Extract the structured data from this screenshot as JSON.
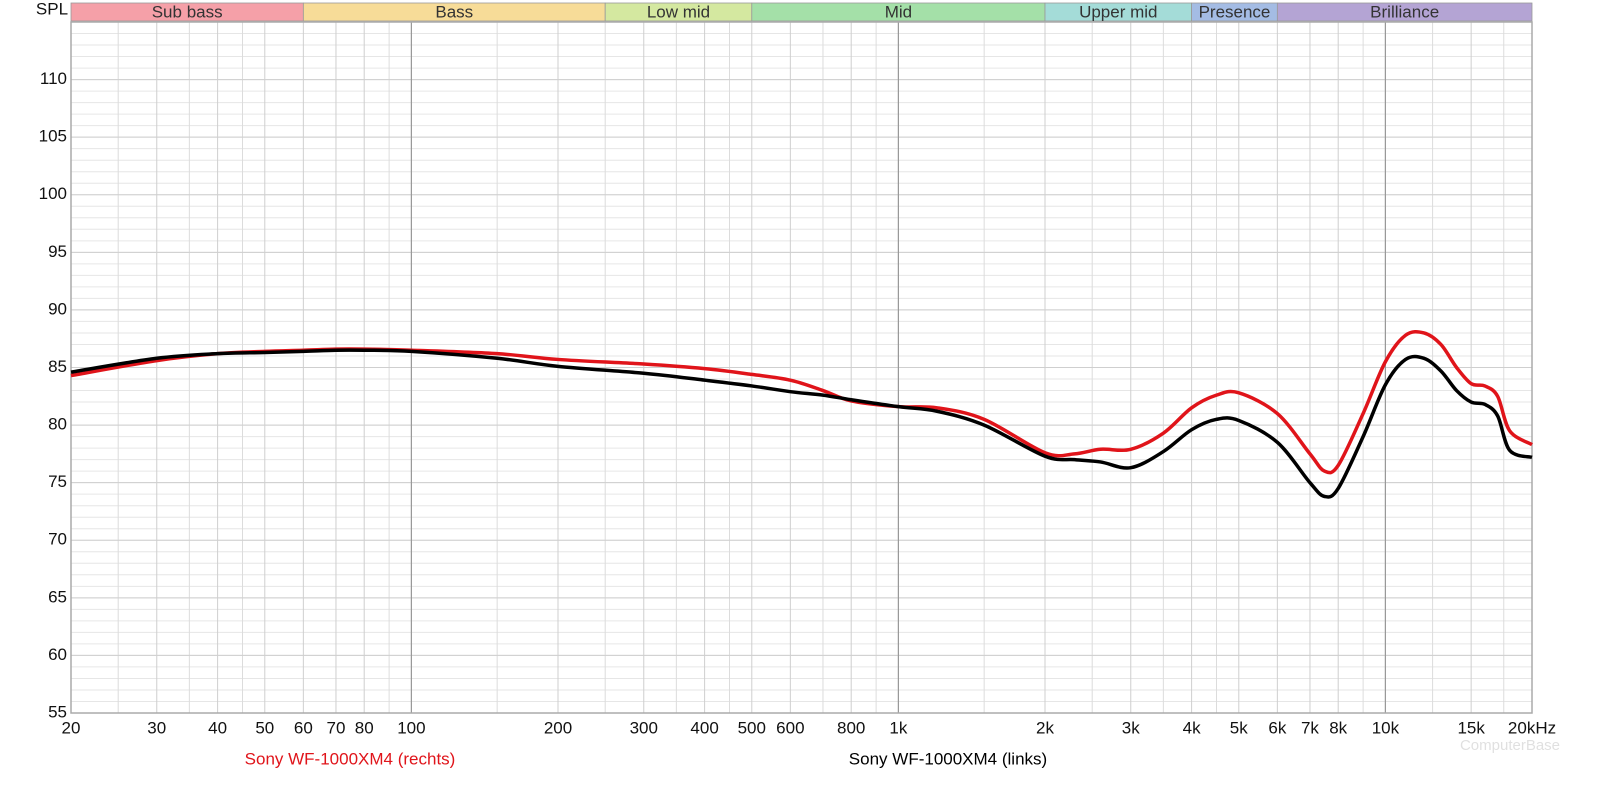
{
  "chart_data": {
    "type": "line",
    "y_label": "SPL",
    "log_x": true,
    "grid": true,
    "yminor_step": 1,
    "xlim": [
      20,
      20000
    ],
    "ylim": [
      55,
      115
    ],
    "yticks": [
      55,
      60,
      65,
      70,
      75,
      80,
      85,
      90,
      95,
      100,
      105,
      110
    ],
    "xticks": [
      20,
      30,
      40,
      50,
      60,
      70,
      80,
      100,
      200,
      300,
      400,
      500,
      600,
      800,
      {
        "value": 1000,
        "label": "1k"
      },
      {
        "value": 2000,
        "label": "2k"
      },
      {
        "value": 3000,
        "label": "3k"
      },
      {
        "value": 4000,
        "label": "4k"
      },
      {
        "value": 5000,
        "label": "5k"
      },
      {
        "value": 6000,
        "label": "6k"
      },
      {
        "value": 7000,
        "label": "7k"
      },
      {
        "value": 8000,
        "label": "8k"
      },
      {
        "value": 10000,
        "label": "10k"
      },
      {
        "value": 15000,
        "label": "15k"
      },
      {
        "value": 20000,
        "label": "20kHz"
      }
    ],
    "xmajor_grid": [
      100,
      1000,
      10000
    ],
    "xminor_grid": [
      25,
      35,
      45,
      90,
      150,
      250,
      350,
      450,
      700,
      900,
      1500,
      2500,
      3500,
      4500,
      9000,
      12500,
      17500
    ],
    "bands": [
      {
        "name": "Sub bass",
        "from": 20,
        "to": 60,
        "color": "#f5a0a8"
      },
      {
        "name": "Bass",
        "from": 60,
        "to": 250,
        "color": "#f7dc98"
      },
      {
        "name": "Low mid",
        "from": 250,
        "to": 500,
        "color": "#d4e8a0"
      },
      {
        "name": "Mid",
        "from": 500,
        "to": 2000,
        "color": "#a4e0a8"
      },
      {
        "name": "Upper mid",
        "from": 2000,
        "to": 4000,
        "color": "#a4dcd8"
      },
      {
        "name": "Presence",
        "from": 4000,
        "to": 6000,
        "color": "#a4bce4"
      },
      {
        "name": "Brilliance",
        "from": 6000,
        "to": 20000,
        "color": "#b4a4d4"
      }
    ],
    "x": [
      20,
      30,
      40,
      50,
      60,
      70,
      80,
      100,
      150,
      200,
      300,
      400,
      500,
      600,
      700,
      800,
      1000,
      1200,
      1500,
      2000,
      2300,
      2600,
      3000,
      3500,
      4000,
      4500,
      5000,
      6000,
      7000,
      7500,
      8000,
      9000,
      10000,
      11000,
      12000,
      13000,
      14000,
      15000,
      16000,
      17000,
      18000,
      20000
    ],
    "series": [
      {
        "name": "Sony WF-1000XM4 (rechts)",
        "color": "#e0141a",
        "values": [
          84.3,
          85.6,
          86.2,
          86.4,
          86.5,
          86.6,
          86.6,
          86.5,
          86.2,
          85.7,
          85.3,
          84.9,
          84.4,
          83.9,
          83.0,
          82.1,
          81.6,
          81.5,
          80.5,
          77.6,
          77.5,
          77.9,
          77.9,
          79.3,
          81.5,
          82.6,
          82.8,
          81.0,
          77.5,
          76.0,
          76.5,
          81.0,
          85.5,
          87.8,
          88.0,
          87.0,
          85.0,
          83.6,
          83.4,
          82.5,
          79.5,
          78.3
        ]
      },
      {
        "name": "Sony WF-1000XM4 (links)",
        "color": "#000000",
        "values": [
          84.6,
          85.8,
          86.2,
          86.3,
          86.4,
          86.5,
          86.5,
          86.4,
          85.8,
          85.1,
          84.5,
          83.9,
          83.4,
          82.9,
          82.6,
          82.2,
          81.6,
          81.2,
          80.0,
          77.3,
          77.0,
          76.8,
          76.3,
          77.7,
          79.6,
          80.5,
          80.4,
          78.5,
          75.0,
          73.8,
          74.5,
          79.0,
          83.5,
          85.7,
          85.8,
          84.7,
          83.0,
          82.0,
          81.8,
          80.8,
          77.8,
          77.2
        ]
      }
    ],
    "watermark": "ComputerBase"
  }
}
